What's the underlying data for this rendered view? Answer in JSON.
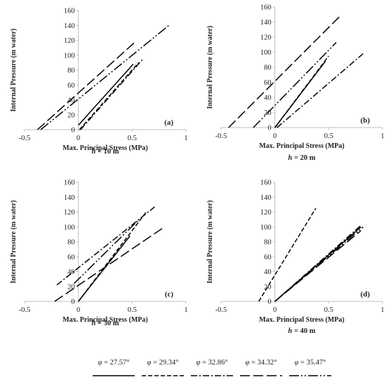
{
  "chart_data": [
    {
      "type": "line",
      "panel_label": "(a)",
      "caption_var": "h",
      "caption_rest": " = 10 m",
      "xlabel": "Max. Principal Stress (MPa)",
      "ylabel": "Internal Pressure (m water)",
      "xlim": [
        -0.5,
        1
      ],
      "ylim": [
        0,
        160
      ],
      "x_ticks": [
        "-0.5",
        "0",
        "0.5",
        "1"
      ],
      "y_ticks": [
        "0",
        "20",
        "40",
        "60",
        "80",
        "100",
        "120",
        "140",
        "160"
      ],
      "grid": false,
      "series": [
        {
          "style": "solid",
          "points": [
            [
              0.0,
              6
            ],
            [
              0.51,
              88
            ]
          ]
        },
        {
          "style": "short-dash",
          "points": [
            [
              0.01,
              0
            ],
            [
              0.56,
              90
            ]
          ]
        },
        {
          "style": "dash-dot",
          "points": [
            [
              0.02,
              0
            ],
            [
              0.6,
              95
            ]
          ]
        },
        {
          "style": "long-dash",
          "points": [
            [
              -0.38,
              0
            ],
            [
              0.53,
              118
            ]
          ]
        },
        {
          "style": "long-dash-dot-dot",
          "points": [
            [
              -0.35,
              0
            ],
            [
              0.84,
              140
            ]
          ]
        }
      ]
    },
    {
      "type": "line",
      "panel_label": "(b)",
      "caption_var": "h",
      "caption_rest": " = 20 m",
      "xlabel": "Max. Principal Stress (MPa)",
      "ylabel": "Internal Pressure (m water)",
      "xlim": [
        -0.5,
        1
      ],
      "ylim": [
        0,
        160
      ],
      "x_ticks": [
        "-0.5",
        "0",
        "0.5",
        "1"
      ],
      "y_ticks": [
        "0",
        "20",
        "40",
        "60",
        "80",
        "100",
        "120",
        "140",
        "160"
      ],
      "grid": false,
      "series": [
        {
          "style": "solid",
          "points": [
            [
              0.0,
              0
            ],
            [
              0.47,
              88
            ]
          ]
        },
        {
          "style": "short-dash",
          "points": [
            [
              0.0,
              0
            ],
            [
              0.5,
              95
            ]
          ]
        },
        {
          "style": "dash-dot",
          "points": [
            [
              0.02,
              0
            ],
            [
              0.82,
              98
            ]
          ]
        },
        {
          "style": "long-dash",
          "points": [
            [
              -0.43,
              0
            ],
            [
              0.62,
              150
            ]
          ]
        },
        {
          "style": "long-dash-dot-dot",
          "points": [
            [
              -0.2,
              0
            ],
            [
              0.57,
              113
            ]
          ]
        }
      ]
    },
    {
      "type": "line",
      "panel_label": "(c)",
      "caption_var": "h",
      "caption_rest": " = 30 m",
      "xlabel": "Max. Principal Stress (MPa)",
      "ylabel": "Internal Pressure (m water)",
      "xlim": [
        -0.5,
        1
      ],
      "ylim": [
        0,
        160
      ],
      "x_ticks": [
        "-0.5",
        "0",
        "0.5",
        "1"
      ],
      "y_ticks": [
        "0",
        "20",
        "40",
        "60",
        "80",
        "100",
        "120",
        "140",
        "160"
      ],
      "grid": false,
      "series": [
        {
          "style": "solid",
          "points": [
            [
              0.0,
              0
            ],
            [
              0.48,
              88
            ]
          ]
        },
        {
          "style": "short-dash",
          "points": [
            [
              0.0,
              0
            ],
            [
              0.63,
              120
            ]
          ]
        },
        {
          "style": "dash-dot",
          "points": [
            [
              -0.2,
              22
            ],
            [
              0.71,
              127
            ]
          ]
        },
        {
          "style": "long-dash",
          "points": [
            [
              -0.22,
              0
            ],
            [
              0.8,
              100
            ]
          ]
        },
        {
          "style": "long-dash-dot-dot",
          "points": [
            [
              -0.04,
              24
            ],
            [
              0.55,
              108
            ]
          ]
        }
      ]
    },
    {
      "type": "line",
      "panel_label": "(d)",
      "caption_var": "h",
      "caption_rest": " = 40 m",
      "xlabel": "Max. Principal Stress (MPa)",
      "ylabel": "Internal Pressure (m water)",
      "xlim": [
        -0.5,
        1
      ],
      "ylim": [
        0,
        160
      ],
      "x_ticks": [
        "-0.5",
        "0",
        "0.5",
        "1"
      ],
      "y_ticks": [
        "0",
        "20",
        "40",
        "60",
        "80",
        "100",
        "120",
        "140",
        "160"
      ],
      "grid": false,
      "series": [
        {
          "style": "solid",
          "points": [
            [
              0.0,
              0
            ],
            [
              0.8,
              100
            ]
          ]
        },
        {
          "style": "short-dash",
          "points": [
            [
              -0.15,
              0
            ],
            [
              0.38,
              125
            ]
          ]
        },
        {
          "style": "dash-dot",
          "points": [
            [
              0.0,
              0
            ],
            [
              0.8,
              102
            ]
          ]
        },
        {
          "style": "long-dash",
          "points": [
            [
              0.0,
              0
            ],
            [
              0.8,
              95
            ]
          ]
        },
        {
          "style": "long-dash-dot-dot",
          "points": [
            [
              0.0,
              0
            ],
            [
              0.82,
              100
            ]
          ]
        }
      ]
    }
  ],
  "legend": {
    "entries": [
      {
        "symbol": "φ",
        "rest": " = 27.57°",
        "style": "solid"
      },
      {
        "symbol": "φ",
        "rest": " = 29.34°",
        "style": "short-dash"
      },
      {
        "symbol": "φ",
        "rest": " = 32.86°",
        "style": "dash-dot"
      },
      {
        "symbol": "φ",
        "rest": " = 34.32°",
        "style": "long-dash"
      },
      {
        "symbol": "φ",
        "rest": " = 35.47°",
        "style": "long-dash-dot-dot"
      }
    ]
  },
  "line_styles": {
    "solid": "",
    "short-dash": "6 3",
    "dash-dot": "9 3 2 3",
    "long-dash": "14 5",
    "long-dash-dot-dot": "14 3 2 3 2 3"
  },
  "colors": {
    "line": "#000000",
    "axis": "#bfbfbf",
    "text": "#222222"
  }
}
